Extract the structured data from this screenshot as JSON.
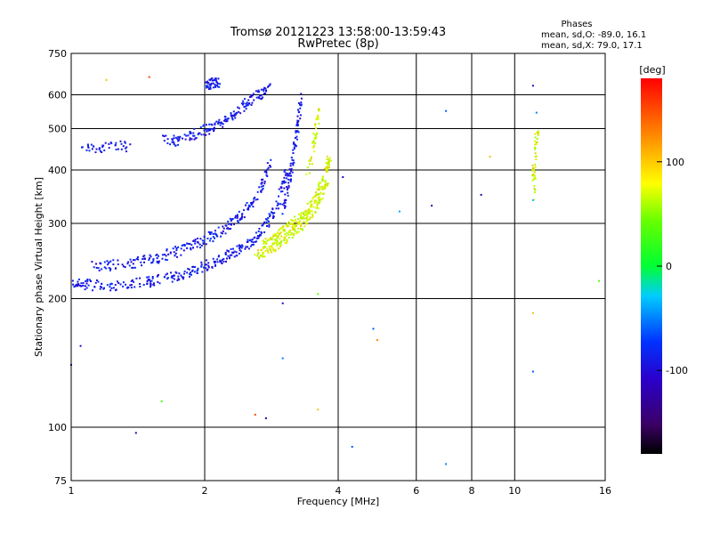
{
  "chart_data": {
    "type": "scatter",
    "title": "Tromsø 20121223 13:58:00-13:59:43",
    "subtitle": "RwPretec (8p)",
    "xlabel": "Frequency [MHz]",
    "ylabel": "Stationary phase Virtual Height [km]",
    "xscale": "log",
    "yscale": "log",
    "xlim": [
      1,
      16
    ],
    "ylim": [
      75,
      750
    ],
    "grid": true,
    "x_ticks": [
      1,
      2,
      4,
      6,
      8,
      10,
      16
    ],
    "x_tick_labels": [
      "1",
      "2",
      "4",
      "6",
      "8",
      "10",
      "16"
    ],
    "y_ticks": [
      75,
      100,
      200,
      300,
      400,
      500,
      600,
      750
    ],
    "y_tick_labels": [
      "75",
      "100",
      "200",
      "300",
      "400",
      "500",
      "600",
      "750"
    ],
    "stats": {
      "heading": "Phases",
      "line1": "mean, sd,O: -89.0, 16.1",
      "line2": "mean, sd,X:  79.0, 17.1"
    },
    "colorbar": {
      "label": "[deg]",
      "range": [
        -180,
        180
      ],
      "ticks": [
        -100,
        0,
        100
      ],
      "tick_labels": [
        "-100",
        "0",
        "100"
      ],
      "colormap": "rainbow"
    },
    "series": [
      {
        "phase_deg": -89,
        "traces": [
          {
            "x": [
              1.0,
              1.05,
              1.1,
              1.2,
              1.3,
              1.4,
              1.5,
              1.6,
              1.7,
              1.8,
              1.9,
              2.0,
              2.1,
              2.2,
              2.3,
              2.4,
              2.5,
              2.6,
              2.7,
              2.8,
              2.9,
              3.0,
              3.05
            ],
            "y": [
              220,
              218,
              216,
              215,
              216,
              218,
              220,
              223,
              226,
              230,
              235,
              240,
              245,
              250,
              256,
              262,
              270,
              280,
              292,
              310,
              335,
              370,
              400
            ]
          },
          {
            "x": [
              3.0,
              3.05,
              3.1,
              3.15,
              3.2,
              3.25,
              3.3
            ],
            "y": [
              320,
              350,
              390,
              430,
              480,
              540,
              600
            ]
          },
          {
            "x": [
              1.1,
              1.2,
              1.3,
              1.4,
              1.5,
              1.6,
              1.7,
              1.8,
              1.9,
              2.0,
              2.1,
              2.2,
              2.3,
              2.4,
              2.5,
              2.6,
              2.7,
              2.8
            ],
            "y": [
              240,
              240,
              242,
              244,
              248,
              252,
              258,
              262,
              270,
              276,
              284,
              292,
              302,
              315,
              330,
              350,
              380,
              420
            ]
          },
          {
            "x": [
              1.6,
              1.7,
              1.8,
              1.9,
              2.0,
              2.1,
              2.2,
              2.3,
              2.4,
              2.5,
              2.6,
              2.7,
              2.8
            ],
            "y": [
              480,
              470,
              480,
              490,
              500,
              510,
              520,
              540,
              560,
              580,
              600,
              610,
              625
            ]
          },
          {
            "x": [
              1.05,
              1.15,
              1.25,
              1.35
            ],
            "y": [
              450,
              455,
              460,
              455
            ]
          },
          {
            "x": [
              2.0,
              2.05,
              2.1,
              2.15
            ],
            "y": [
              630,
              640,
              645,
              640
            ]
          }
        ]
      },
      {
        "phase_deg": 79,
        "traces": [
          {
            "x": [
              2.6,
              2.7,
              2.8,
              2.9,
              3.0,
              3.1,
              3.2,
              3.3,
              3.4,
              3.5,
              3.6,
              3.7,
              3.75,
              3.8
            ],
            "y": [
              255,
              258,
              262,
              268,
              275,
              282,
              290,
              300,
              312,
              325,
              340,
              360,
              380,
              420
            ]
          },
          {
            "x": [
              2.7,
              2.8,
              2.9,
              3.0,
              3.1,
              3.2,
              3.3,
              3.4,
              3.5,
              3.6,
              3.7,
              3.8
            ],
            "y": [
              270,
              275,
              282,
              290,
              298,
              305,
              315,
              325,
              340,
              360,
              390,
              430
            ]
          },
          {
            "x": [
              3.4,
              3.5,
              3.55,
              3.6
            ],
            "y": [
              400,
              450,
              500,
              550
            ]
          },
          {
            "x": [
              11.0,
              11.0,
              11.1,
              11.2
            ],
            "y": [
              350,
              400,
              450,
              500
            ]
          }
        ]
      }
    ],
    "outliers": [
      {
        "x": 1.0,
        "y": 140,
        "phase": -110
      },
      {
        "x": 1.05,
        "y": 155,
        "phase": -100
      },
      {
        "x": 1.4,
        "y": 97,
        "phase": -120
      },
      {
        "x": 1.6,
        "y": 115,
        "phase": 30
      },
      {
        "x": 2.6,
        "y": 107,
        "phase": 150
      },
      {
        "x": 2.75,
        "y": 105,
        "phase": -120
      },
      {
        "x": 3.0,
        "y": 195,
        "phase": -110
      },
      {
        "x": 3.0,
        "y": 145,
        "phase": -50
      },
      {
        "x": 3.6,
        "y": 110,
        "phase": 100
      },
      {
        "x": 3.6,
        "y": 205,
        "phase": 40
      },
      {
        "x": 4.3,
        "y": 90,
        "phase": -60
      },
      {
        "x": 4.8,
        "y": 170,
        "phase": -60
      },
      {
        "x": 4.9,
        "y": 160,
        "phase": 120
      },
      {
        "x": 4.1,
        "y": 385,
        "phase": -110
      },
      {
        "x": 5.5,
        "y": 320,
        "phase": -40
      },
      {
        "x": 6.5,
        "y": 330,
        "phase": -120
      },
      {
        "x": 7.0,
        "y": 82,
        "phase": -50
      },
      {
        "x": 7.0,
        "y": 550,
        "phase": -60
      },
      {
        "x": 8.4,
        "y": 350,
        "phase": -130
      },
      {
        "x": 8.8,
        "y": 430,
        "phase": 100
      },
      {
        "x": 11.0,
        "y": 630,
        "phase": -120
      },
      {
        "x": 11.0,
        "y": 185,
        "phase": 100
      },
      {
        "x": 11.0,
        "y": 135,
        "phase": -60
      },
      {
        "x": 11.0,
        "y": 340,
        "phase": -30
      },
      {
        "x": 11.2,
        "y": 545,
        "phase": -50
      },
      {
        "x": 15.5,
        "y": 220,
        "phase": 30
      },
      {
        "x": 1.2,
        "y": 650,
        "phase": 100
      },
      {
        "x": 1.5,
        "y": 660,
        "phase": 150
      }
    ]
  }
}
